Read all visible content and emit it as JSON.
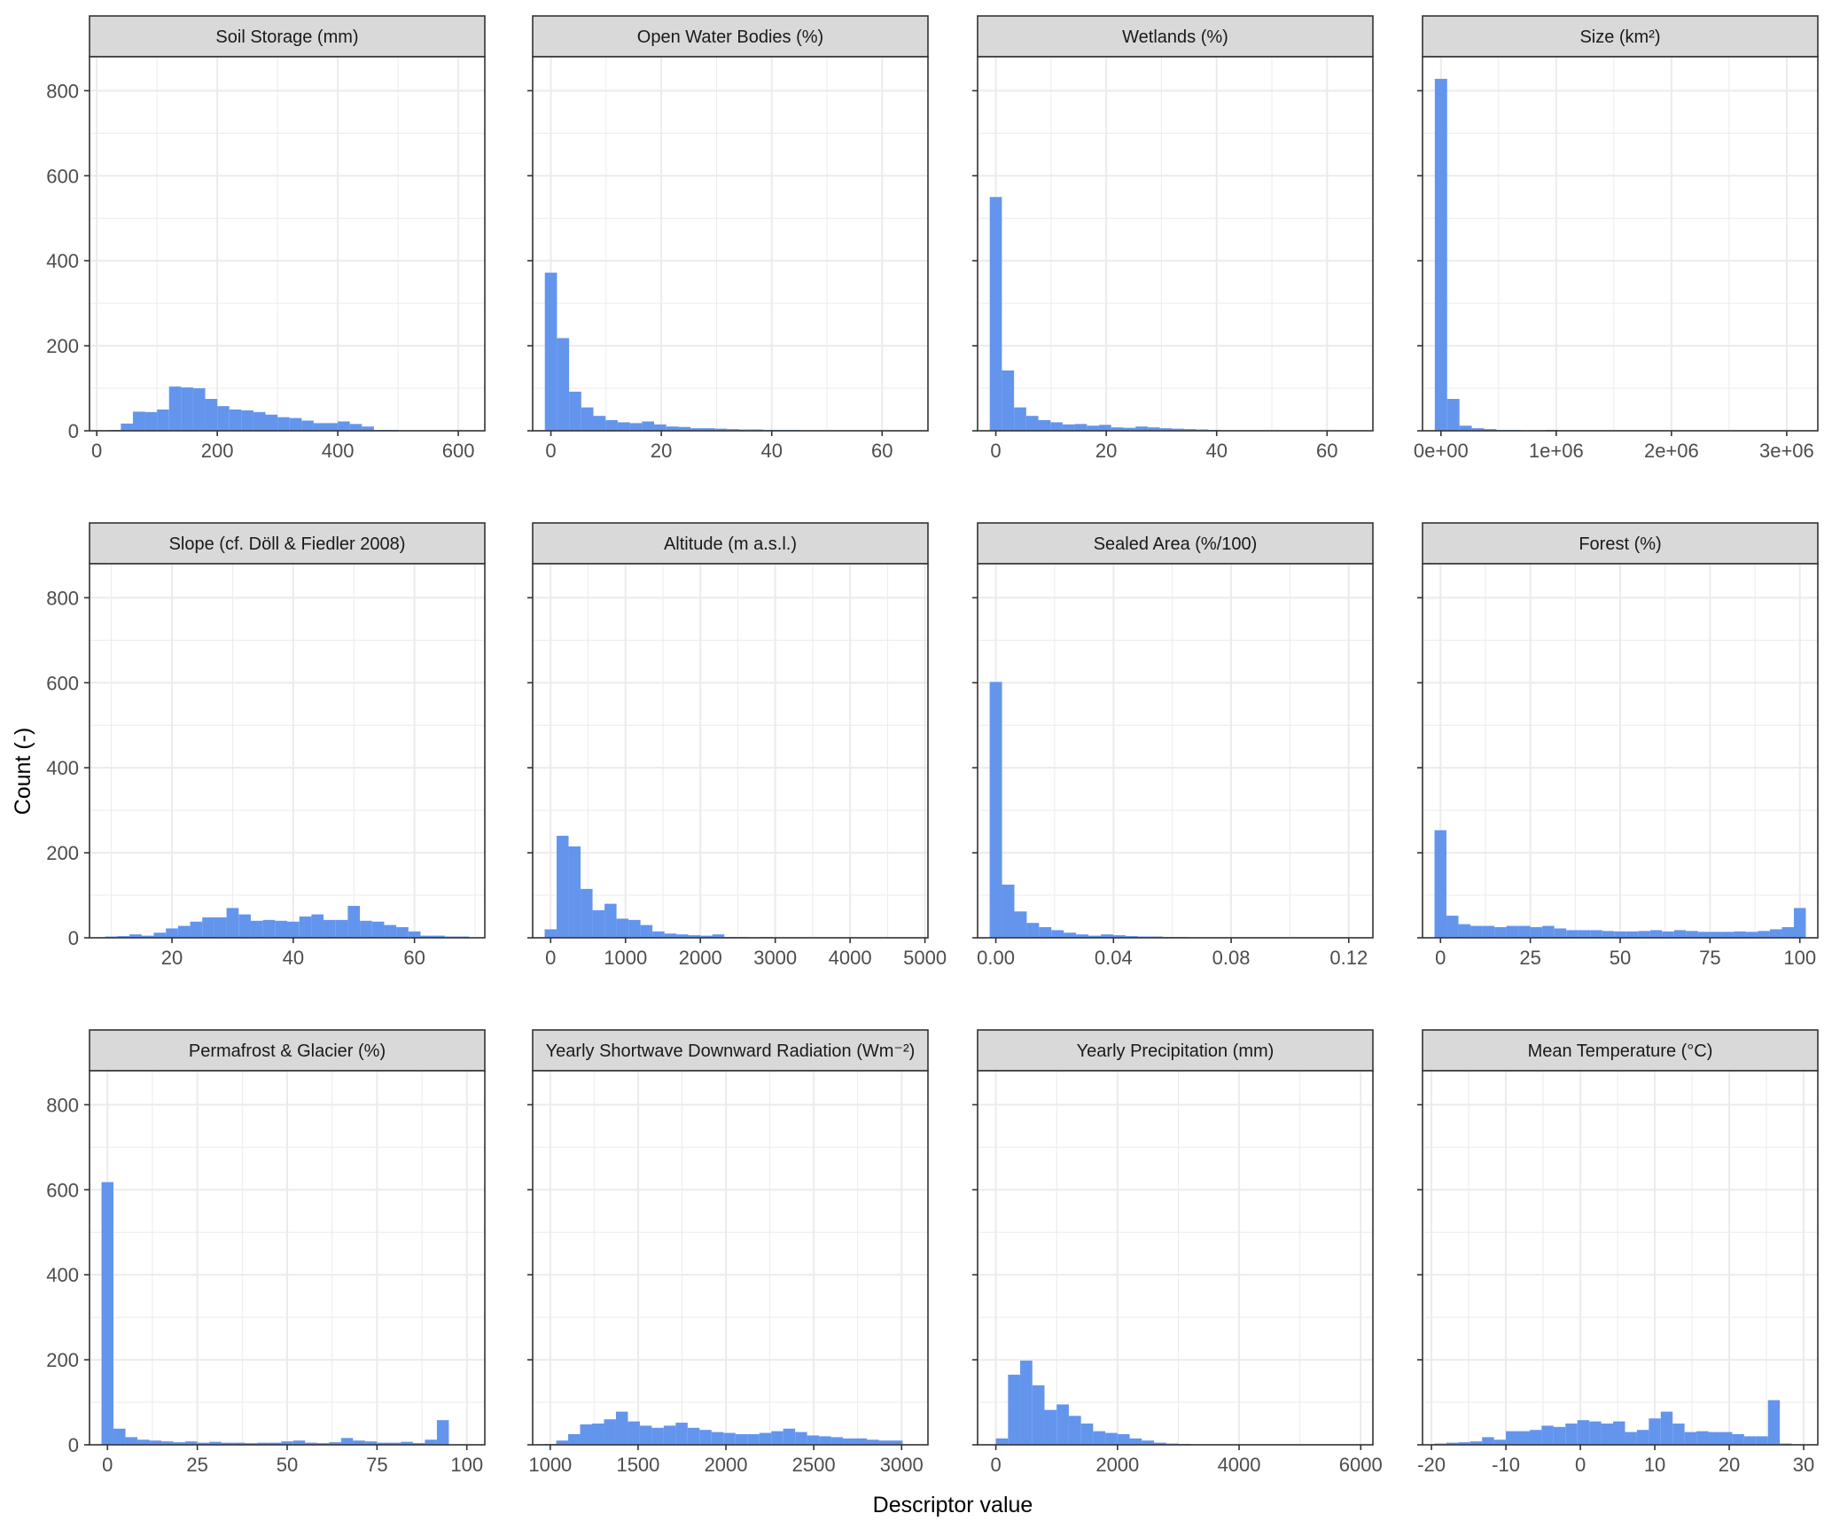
{
  "figure": {
    "xlabel": "Descriptor value",
    "ylabel": "Count (-)"
  },
  "colors": {
    "bar": "#6495ed",
    "strip_fill": "#d9d9d9",
    "panel_border": "#333333",
    "grid": "#ebebeb"
  },
  "chart_data": [
    {
      "type": "bar",
      "title": "Soil Storage (mm)",
      "ylim": [
        0,
        880
      ],
      "xlim": [
        -12,
        644
      ],
      "yticks": [
        0,
        200,
        400,
        600,
        800
      ],
      "ytick_labels": [
        "0",
        "200",
        "400",
        "600",
        "800"
      ],
      "xticks": [
        0,
        200,
        400,
        600
      ],
      "xtick_labels": [
        "0",
        "200",
        "400",
        "600"
      ],
      "binwidth": 20,
      "bins": [
        10,
        30,
        50,
        70,
        90,
        110,
        130,
        150,
        170,
        190,
        210,
        230,
        250,
        270,
        290,
        310,
        330,
        350,
        370,
        390,
        410,
        430,
        450,
        470,
        490,
        510,
        530,
        550,
        570,
        590,
        610,
        630
      ],
      "values": [
        1,
        2,
        17,
        45,
        44,
        50,
        104,
        102,
        100,
        75,
        58,
        50,
        48,
        44,
        38,
        32,
        30,
        24,
        18,
        18,
        22,
        16,
        10,
        2,
        2,
        1,
        0,
        0,
        0,
        0,
        1,
        0
      ]
    },
    {
      "type": "bar",
      "title": "Open Water Bodies (%)",
      "ylim": [
        0,
        880
      ],
      "xlim": [
        -3.3,
        68.3
      ],
      "yticks": [
        0,
        200,
        400,
        600,
        800
      ],
      "ytick_labels": [
        "0",
        "200",
        "400",
        "600",
        "800"
      ],
      "xticks": [
        0,
        20,
        40,
        60
      ],
      "xtick_labels": [
        "0",
        "20",
        "40",
        "60"
      ],
      "binwidth": 2.2,
      "bins": [
        0,
        2.2,
        4.4,
        6.6,
        8.8,
        11,
        13.2,
        15.4,
        17.6,
        19.8,
        22,
        24.2,
        26.4,
        28.6,
        30.8,
        33,
        35.2,
        37.4,
        39.6,
        41.8,
        44,
        46.2,
        48.4,
        50.6,
        52.8,
        55,
        57.2,
        59.4,
        61.6,
        63.8
      ],
      "values": [
        372,
        218,
        92,
        55,
        35,
        25,
        20,
        18,
        22,
        15,
        10,
        9,
        6,
        6,
        5,
        4,
        3,
        3,
        2,
        2,
        2,
        1,
        1,
        1,
        1,
        1,
        0,
        0,
        1,
        0
      ]
    },
    {
      "type": "bar",
      "title": "Wetlands (%)",
      "ylim": [
        0,
        880
      ],
      "xlim": [
        -3.3,
        68.3
      ],
      "yticks": [
        0,
        200,
        400,
        600,
        800
      ],
      "ytick_labels": [
        "0",
        "200",
        "400",
        "600",
        "800"
      ],
      "xticks": [
        0,
        20,
        40,
        60
      ],
      "xtick_labels": [
        "0",
        "20",
        "40",
        "60"
      ],
      "binwidth": 2.2,
      "bins": [
        0,
        2.2,
        4.4,
        6.6,
        8.8,
        11,
        13.2,
        15.4,
        17.6,
        19.8,
        22,
        24.2,
        26.4,
        28.6,
        30.8,
        33,
        35.2,
        37.4,
        39.6,
        41.8,
        44,
        46.2,
        48.4,
        50.6,
        52.8,
        55,
        57.2,
        59.4,
        61.6,
        63.8
      ],
      "values": [
        550,
        142,
        55,
        35,
        25,
        20,
        15,
        16,
        12,
        14,
        8,
        7,
        10,
        8,
        6,
        5,
        4,
        3,
        2,
        1,
        1,
        1,
        0,
        1,
        0,
        0,
        0,
        0,
        0,
        1
      ]
    },
    {
      "type": "bar",
      "title": "Size (km²)",
      "ylim": [
        0,
        880
      ],
      "xlim": [
        -160000,
        3270000
      ],
      "yticks": [
        0,
        200,
        400,
        600,
        800
      ],
      "ytick_labels": [
        "0",
        "200",
        "400",
        "600",
        "800"
      ],
      "xticks": [
        0,
        1000000,
        2000000,
        3000000
      ],
      "xtick_labels": [
        "0e+00",
        "1e+06",
        "2e+06",
        "3e+06"
      ],
      "binwidth": 107000,
      "bins": [
        0,
        107000,
        214000,
        321000,
        428000,
        535000,
        642000,
        749000,
        856000,
        963000,
        1070000,
        1177000,
        1284000,
        1391000,
        1498000,
        1605000,
        1712000,
        1819000,
        1926000,
        2033000,
        2140000,
        2247000,
        2354000,
        2461000,
        2568000,
        2675000,
        2782000,
        2889000,
        2996000,
        3103000
      ],
      "values": [
        828,
        75,
        12,
        6,
        4,
        2,
        2,
        1,
        1,
        2,
        1,
        1,
        0,
        0,
        0,
        0,
        0,
        0,
        0,
        0,
        0,
        0,
        0,
        0,
        0,
        0,
        0,
        0,
        0,
        1
      ]
    },
    {
      "type": "bar",
      "title": "Slope (cf. Döll & Fiedler 2008)",
      "ylim": [
        0,
        880
      ],
      "xlim": [
        6.4,
        71.6
      ],
      "yticks": [
        0,
        200,
        400,
        600,
        800
      ],
      "ytick_labels": [
        "0",
        "200",
        "400",
        "600",
        "800"
      ],
      "xticks": [
        20,
        40,
        60
      ],
      "xtick_labels": [
        "20",
        "40",
        "60"
      ],
      "binwidth": 2,
      "bins": [
        10,
        12,
        14,
        16,
        18,
        20,
        22,
        24,
        26,
        28,
        30,
        32,
        34,
        36,
        38,
        40,
        42,
        44,
        46,
        48,
        50,
        52,
        54,
        56,
        58,
        60,
        62,
        64,
        66,
        68
      ],
      "values": [
        3,
        4,
        8,
        5,
        12,
        22,
        28,
        38,
        48,
        48,
        70,
        55,
        40,
        42,
        40,
        38,
        50,
        55,
        42,
        42,
        75,
        40,
        38,
        30,
        25,
        15,
        5,
        5,
        3,
        3
      ]
    },
    {
      "type": "bar",
      "title": "Altitude (m a.s.l.)",
      "ylim": [
        0,
        880
      ],
      "xlim": [
        -240,
        5040
      ],
      "yticks": [
        0,
        200,
        400,
        600,
        800
      ],
      "ytick_labels": [
        "0",
        "200",
        "400",
        "600",
        "800"
      ],
      "xticks": [
        0,
        1000,
        2000,
        3000,
        4000,
        5000
      ],
      "xtick_labels": [
        "0",
        "1000",
        "2000",
        "3000",
        "4000",
        "5000"
      ],
      "binwidth": 160,
      "bins": [
        0,
        160,
        320,
        480,
        640,
        800,
        960,
        1120,
        1280,
        1440,
        1600,
        1760,
        1920,
        2080,
        2240,
        2400,
        2560,
        2720,
        2880,
        3040,
        3200,
        3360,
        3520,
        3680,
        3840,
        4000,
        4160,
        4320,
        4480,
        4640
      ],
      "values": [
        20,
        240,
        215,
        115,
        65,
        80,
        45,
        42,
        30,
        15,
        10,
        8,
        6,
        5,
        8,
        2,
        2,
        1,
        2,
        1,
        0,
        0,
        0,
        0,
        0,
        1,
        0,
        0,
        0,
        1
      ]
    },
    {
      "type": "bar",
      "title": "Sealed Area (%/100)",
      "ylim": [
        0,
        880
      ],
      "xlim": [
        -0.0062,
        0.1282
      ],
      "yticks": [
        0,
        200,
        400,
        600,
        800
      ],
      "ytick_labels": [
        "0",
        "200",
        "400",
        "600",
        "800"
      ],
      "xticks": [
        0,
        0.04,
        0.08,
        0.12
      ],
      "xtick_labels": [
        "0.00",
        "0.04",
        "0.08",
        "0.12"
      ],
      "binwidth": 0.0042,
      "bins": [
        0,
        0.0042,
        0.0084,
        0.0126,
        0.0168,
        0.021,
        0.0252,
        0.0294,
        0.0336,
        0.0378,
        0.042,
        0.0462,
        0.0504,
        0.0546,
        0.0588,
        0.063,
        0.0672,
        0.0714,
        0.0756,
        0.0798,
        0.084,
        0.0882,
        0.0924,
        0.0966,
        0.1008,
        0.105,
        0.1092,
        0.1134,
        0.1176,
        0.1218
      ],
      "values": [
        602,
        125,
        62,
        35,
        25,
        18,
        12,
        8,
        5,
        8,
        6,
        4,
        3,
        3,
        2,
        2,
        1,
        1,
        0,
        1,
        1,
        0,
        1,
        0,
        1,
        0,
        0,
        0,
        1,
        0
      ]
    },
    {
      "type": "bar",
      "title": "Forest (%)",
      "ylim": [
        0,
        880
      ],
      "xlim": [
        -5,
        105
      ],
      "yticks": [
        0,
        200,
        400,
        600,
        800
      ],
      "ytick_labels": [
        "0",
        "200",
        "400",
        "600",
        "800"
      ],
      "xticks": [
        0,
        25,
        50,
        75,
        100
      ],
      "xtick_labels": [
        "0",
        "25",
        "50",
        "75",
        "100"
      ],
      "binwidth": 3.33,
      "bins": [
        0,
        3.33,
        6.67,
        10,
        13.33,
        16.67,
        20,
        23.33,
        26.67,
        30,
        33.33,
        36.67,
        40,
        43.33,
        46.67,
        50,
        53.33,
        56.67,
        60,
        63.33,
        66.67,
        70,
        73.33,
        76.67,
        80,
        83.33,
        86.67,
        90,
        93.33,
        96.67,
        100
      ],
      "values": [
        253,
        52,
        32,
        28,
        28,
        25,
        28,
        28,
        25,
        28,
        22,
        18,
        18,
        18,
        16,
        15,
        15,
        16,
        18,
        15,
        18,
        16,
        14,
        14,
        14,
        15,
        14,
        16,
        20,
        25,
        70
      ]
    },
    {
      "type": "bar",
      "title": "Permafrost & Glacier (%)",
      "ylim": [
        0,
        880
      ],
      "xlim": [
        -5,
        105
      ],
      "yticks": [
        0,
        200,
        400,
        600,
        800
      ],
      "ytick_labels": [
        "0",
        "200",
        "400",
        "600",
        "800"
      ],
      "xticks": [
        0,
        25,
        50,
        75,
        100
      ],
      "xtick_labels": [
        "0",
        "25",
        "50",
        "75",
        "100"
      ],
      "binwidth": 3.33,
      "bins": [
        0,
        3.33,
        6.67,
        10,
        13.33,
        16.67,
        20,
        23.33,
        26.67,
        30,
        33.33,
        36.67,
        40,
        43.33,
        46.67,
        50,
        53.33,
        56.67,
        60,
        63.33,
        66.67,
        70,
        73.33,
        76.67,
        80,
        83.33,
        86.67,
        90,
        93.33,
        96.67
      ],
      "values": [
        618,
        38,
        18,
        12,
        10,
        8,
        6,
        8,
        5,
        7,
        5,
        5,
        4,
        5,
        5,
        8,
        10,
        5,
        4,
        6,
        16,
        10,
        8,
        5,
        5,
        7,
        4,
        12,
        58,
        0
      ]
    },
    {
      "type": "bar",
      "title": "Yearly Shortwave Downward Radiation (Wm⁻²)",
      "ylim": [
        0,
        880
      ],
      "xlim": [
        900,
        3150
      ],
      "yticks": [
        0,
        200,
        400,
        600,
        800
      ],
      "ytick_labels": [
        "0",
        "200",
        "400",
        "600",
        "800"
      ],
      "xticks": [
        1000,
        1500,
        2000,
        2500,
        3000
      ],
      "xtick_labels": [
        "1000",
        "1500",
        "2000",
        "2500",
        "3000"
      ],
      "binwidth": 68,
      "bins": [
        1000,
        1068,
        1136,
        1204,
        1272,
        1340,
        1408,
        1476,
        1544,
        1612,
        1680,
        1748,
        1816,
        1884,
        1952,
        2020,
        2088,
        2156,
        2224,
        2292,
        2360,
        2428,
        2496,
        2564,
        2632,
        2700,
        2768,
        2836,
        2904,
        2972
      ],
      "values": [
        2,
        10,
        25,
        48,
        50,
        60,
        78,
        55,
        45,
        40,
        45,
        52,
        40,
        35,
        30,
        28,
        25,
        25,
        28,
        32,
        38,
        30,
        22,
        20,
        18,
        15,
        15,
        12,
        10,
        10
      ]
    },
    {
      "type": "bar",
      "title": "Yearly Precipitation (mm)",
      "ylim": [
        0,
        880
      ],
      "xlim": [
        -300,
        6200
      ],
      "yticks": [
        0,
        200,
        400,
        600,
        800
      ],
      "ytick_labels": [
        "0",
        "200",
        "400",
        "600",
        "800"
      ],
      "xticks": [
        0,
        2000,
        4000,
        6000
      ],
      "xtick_labels": [
        "0",
        "2000",
        "4000",
        "6000"
      ],
      "binwidth": 200,
      "bins": [
        100,
        300,
        500,
        700,
        900,
        1100,
        1300,
        1500,
        1700,
        1900,
        2100,
        2300,
        2500,
        2700,
        2900,
        3100,
        3300,
        3500,
        3700,
        3900,
        4100,
        4300,
        4500,
        4700,
        4900,
        5100,
        5300,
        5500,
        5700,
        5900
      ],
      "values": [
        15,
        165,
        198,
        140,
        82,
        95,
        68,
        50,
        32,
        28,
        25,
        15,
        10,
        5,
        3,
        2,
        1,
        1,
        0,
        0,
        0,
        0,
        0,
        0,
        0,
        0,
        0,
        0,
        1,
        0
      ]
    },
    {
      "type": "bar",
      "title": "Mean Temperature (°C)",
      "ylim": [
        0,
        880
      ],
      "xlim": [
        -21.2,
        31.9
      ],
      "yticks": [
        0,
        200,
        400,
        600,
        800
      ],
      "ytick_labels": [
        "0",
        "200",
        "400",
        "600",
        "800"
      ],
      "xticks": [
        -20,
        -10,
        0,
        10,
        20,
        30
      ],
      "xtick_labels": [
        "-20",
        "-10",
        "0",
        "10",
        "20",
        "30"
      ],
      "binwidth": 1.6,
      "bins": [
        -18.8,
        -17.2,
        -15.6,
        -14,
        -12.4,
        -10.8,
        -9.2,
        -7.6,
        -6,
        -4.4,
        -2.8,
        -1.2,
        0.4,
        2,
        3.6,
        5.2,
        6.8,
        8.4,
        10,
        11.6,
        13.2,
        14.8,
        16.4,
        18,
        19.6,
        21.2,
        22.8,
        24.4,
        26,
        27.6
      ],
      "values": [
        3,
        5,
        6,
        8,
        18,
        12,
        32,
        32,
        35,
        45,
        42,
        50,
        58,
        55,
        50,
        55,
        30,
        35,
        62,
        78,
        50,
        30,
        32,
        30,
        30,
        25,
        20,
        20,
        105,
        3
      ]
    }
  ]
}
